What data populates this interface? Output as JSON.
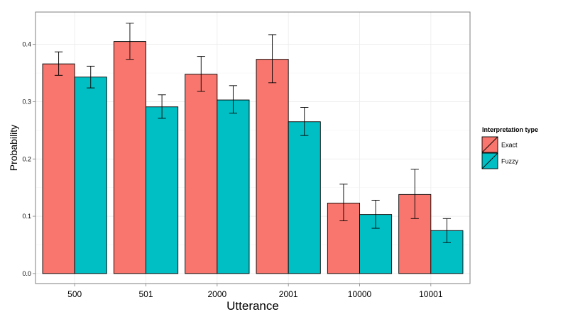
{
  "chart_data": {
    "type": "bar",
    "title": "",
    "xlabel": "Utterance",
    "ylabel": "Probability",
    "categories": [
      "500",
      "501",
      "2000",
      "2001",
      "10000",
      "10001"
    ],
    "series": [
      {
        "name": "Exact",
        "color": "#F8766D",
        "values": [
          0.366,
          0.405,
          0.348,
          0.374,
          0.123,
          0.138
        ],
        "error_low": [
          0.346,
          0.374,
          0.318,
          0.333,
          0.092,
          0.096
        ],
        "error_high": [
          0.387,
          0.437,
          0.379,
          0.417,
          0.156,
          0.182
        ]
      },
      {
        "name": "Fuzzy",
        "color": "#00BFC4",
        "values": [
          0.343,
          0.291,
          0.303,
          0.265,
          0.103,
          0.075
        ],
        "error_low": [
          0.324,
          0.271,
          0.28,
          0.241,
          0.079,
          0.054
        ],
        "error_high": [
          0.362,
          0.312,
          0.328,
          0.29,
          0.128,
          0.096
        ]
      }
    ],
    "ylim": [
      -0.0175,
      0.4565
    ],
    "yticks": [
      "0.0",
      "0.1",
      "0.2",
      "0.3",
      "0.4"
    ],
    "ytick_values": [
      0,
      0.1,
      0.2,
      0.3,
      0.4
    ],
    "grid": true,
    "legend": {
      "title": "Interpretation type",
      "placement": "right"
    }
  }
}
